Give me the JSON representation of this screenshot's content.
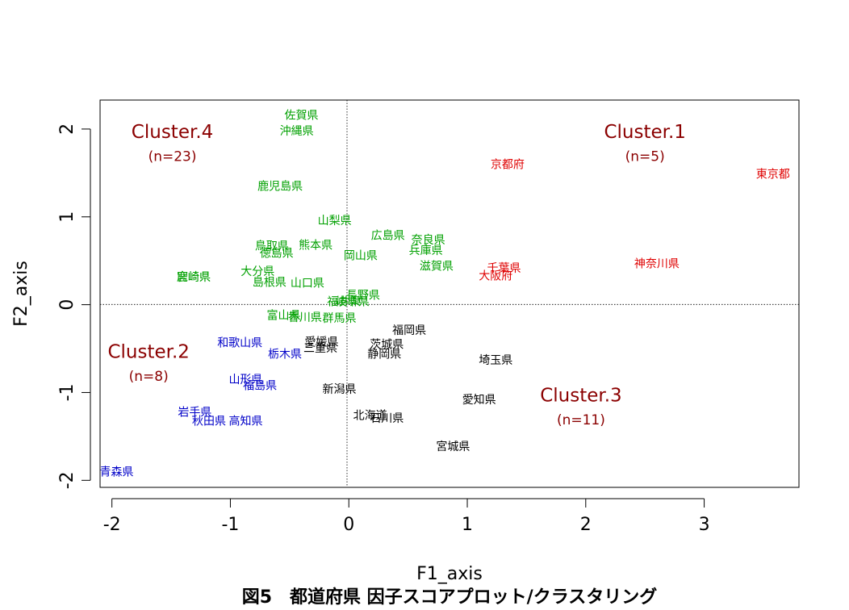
{
  "chart_data": {
    "type": "scatter",
    "title": "図5　都道府県 因子スコアプロット/クラスタリング",
    "xlabel": "F1_axis",
    "ylabel": "F2_axis",
    "xlim": [
      -2.1,
      3.8
    ],
    "ylim": [
      -2.08,
      2.33
    ],
    "xticks": [
      -2,
      -1,
      0,
      1,
      2,
      3
    ],
    "yticks": [
      -2,
      -1,
      0,
      1,
      2
    ],
    "grid": false,
    "reference_lines": {
      "x": 0,
      "y": 0,
      "style": "dotted"
    },
    "colors": {
      "c1": "#DF0000",
      "c2": "#0000C8",
      "c3": "#000000",
      "c4": "#00A000",
      "cluster_label": "#8B0000"
    },
    "series": [
      {
        "cluster": "c1",
        "points": [
          {
            "label": "東京都",
            "x": 3.58,
            "y": 1.49
          },
          {
            "label": "京都府",
            "x": 1.34,
            "y": 1.6
          },
          {
            "label": "神奈川県",
            "x": 2.6,
            "y": 0.47
          },
          {
            "label": "千葉県",
            "x": 1.31,
            "y": 0.42
          },
          {
            "label": "大阪府",
            "x": 1.24,
            "y": 0.33
          }
        ]
      },
      {
        "cluster": "c2",
        "points": [
          {
            "label": "和歌山県",
            "x": -0.92,
            "y": -0.43
          },
          {
            "label": "栃木県",
            "x": -0.54,
            "y": -0.56
          },
          {
            "label": "山形県",
            "x": -0.87,
            "y": -0.85
          },
          {
            "label": "福島県",
            "x": -0.75,
            "y": -0.92
          },
          {
            "label": "岩手県",
            "x": -1.3,
            "y": -1.22
          },
          {
            "label": "秋田県",
            "x": -1.18,
            "y": -1.32
          },
          {
            "label": "高知県",
            "x": -0.87,
            "y": -1.32
          },
          {
            "label": "青森県",
            "x": -1.96,
            "y": -1.9
          }
        ]
      },
      {
        "cluster": "c3",
        "points": [
          {
            "label": "福岡県",
            "x": 0.51,
            "y": -0.29
          },
          {
            "label": "愛媛県",
            "x": -0.23,
            "y": -0.42
          },
          {
            "label": "茨城県",
            "x": 0.32,
            "y": -0.45
          },
          {
            "label": "三重県",
            "x": -0.24,
            "y": -0.49
          },
          {
            "label": "静岡県",
            "x": 0.3,
            "y": -0.56
          },
          {
            "label": "埼玉県",
            "x": 1.24,
            "y": -0.63
          },
          {
            "label": "新潟県",
            "x": -0.08,
            "y": -0.96
          },
          {
            "label": "愛知県",
            "x": 1.1,
            "y": -1.08
          },
          {
            "label": "北海道",
            "x": 0.18,
            "y": -1.26
          },
          {
            "label": "石川県",
            "x": 0.32,
            "y": -1.29
          },
          {
            "label": "宮城県",
            "x": 0.88,
            "y": -1.61
          }
        ]
      },
      {
        "cluster": "c4",
        "points": [
          {
            "label": "佐賀県",
            "x": -0.4,
            "y": 2.16
          },
          {
            "label": "沖縄県",
            "x": -0.44,
            "y": 1.98
          },
          {
            "label": "鹿児島県",
            "x": -0.58,
            "y": 1.35
          },
          {
            "label": "山梨県",
            "x": -0.12,
            "y": 0.96
          },
          {
            "label": "広島県",
            "x": 0.33,
            "y": 0.79
          },
          {
            "label": "奈良県",
            "x": 0.67,
            "y": 0.74
          },
          {
            "label": "鳥取県",
            "x": -0.65,
            "y": 0.67
          },
          {
            "label": "熊本県",
            "x": -0.28,
            "y": 0.68
          },
          {
            "label": "兵庫県",
            "x": 0.65,
            "y": 0.62
          },
          {
            "label": "徳島県",
            "x": -0.61,
            "y": 0.59
          },
          {
            "label": "岡山県",
            "x": 0.1,
            "y": 0.56
          },
          {
            "label": "滋賀県",
            "x": 0.74,
            "y": 0.44
          },
          {
            "label": "大分県",
            "x": -0.77,
            "y": 0.38
          },
          {
            "label": "宮崎県",
            "x": -1.31,
            "y": 0.32
          },
          {
            "label": "鹿崎県",
            "x": -1.31,
            "y": 0.32
          },
          {
            "label": "島根県",
            "x": -0.67,
            "y": 0.26
          },
          {
            "label": "山口県",
            "x": -0.35,
            "y": 0.25
          },
          {
            "label": "長野県",
            "x": 0.12,
            "y": 0.11
          },
          {
            "label": "福井県",
            "x": -0.04,
            "y": 0.04
          },
          {
            "label": "岐阜県",
            "x": 0.03,
            "y": 0.04
          },
          {
            "label": "富山県",
            "x": -0.55,
            "y": -0.12
          },
          {
            "label": "香川県",
            "x": -0.37,
            "y": -0.14
          },
          {
            "label": "群馬県",
            "x": -0.08,
            "y": -0.15
          }
        ]
      }
    ],
    "cluster_labels": [
      {
        "name": "Cluster.1",
        "n": "(n=5)",
        "x": 2.5,
        "y": 1.97,
        "ny": 1.69
      },
      {
        "name": "Cluster.2",
        "n": "(n=8)",
        "x": -1.69,
        "y": -0.53,
        "ny": -0.81
      },
      {
        "name": "Cluster.3",
        "n": "(n=11)",
        "x": 1.96,
        "y": -1.03,
        "ny": -1.31
      },
      {
        "name": "Cluster.4",
        "n": "(n=23)",
        "x": -1.49,
        "y": 1.97,
        "ny": 1.69
      }
    ]
  }
}
